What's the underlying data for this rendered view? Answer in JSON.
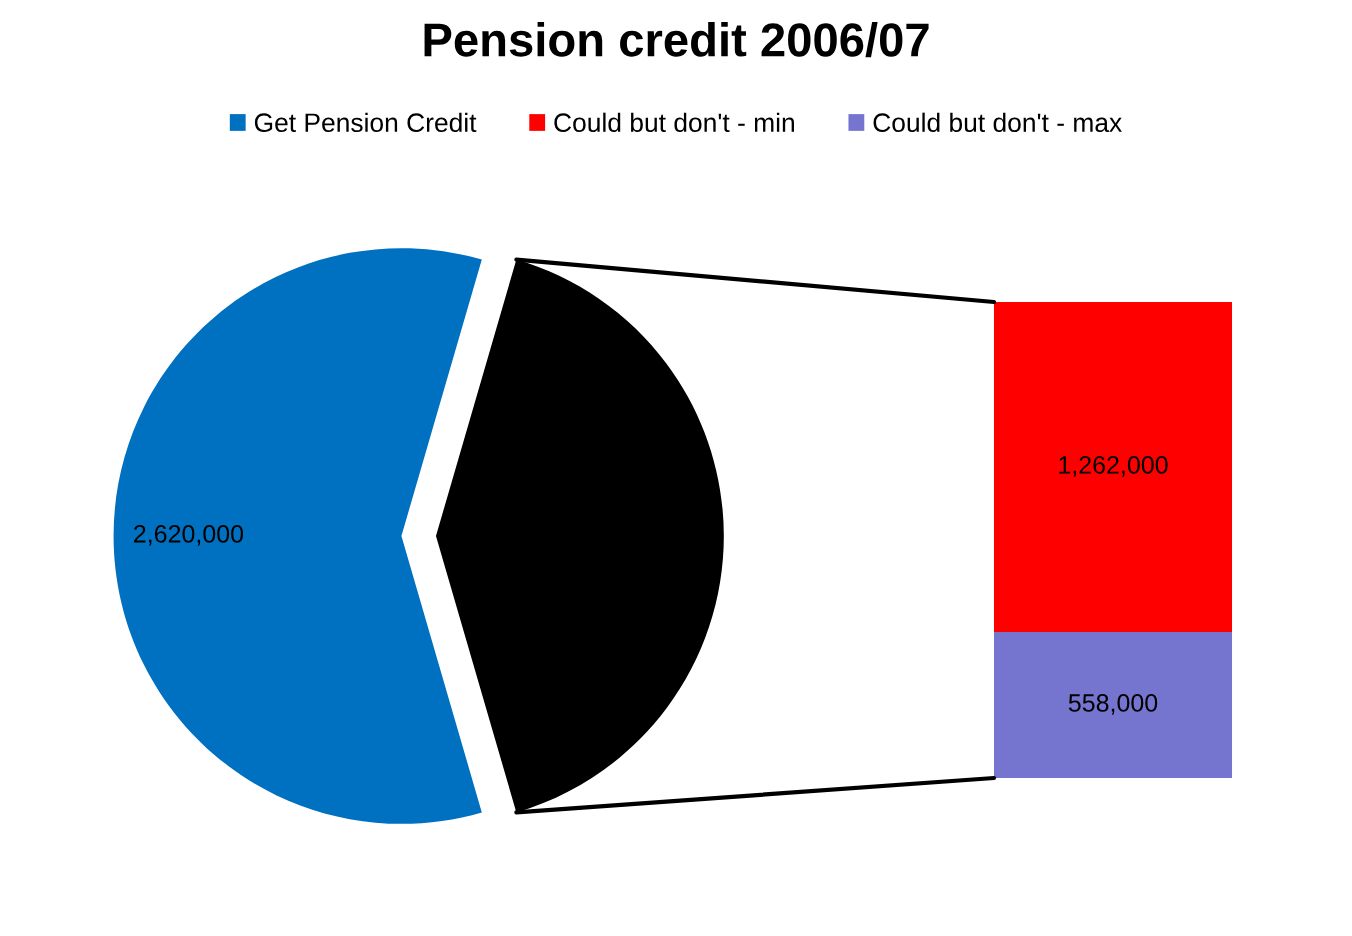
{
  "chart_data": [
    {
      "type": "pie",
      "title": "Pension credit 2006/07",
      "categories": [
        "Get Pension Credit",
        null
      ],
      "values": [
        2620000,
        1820000
      ],
      "colors": [
        "#0070c0",
        "#000000"
      ],
      "value_labels": [
        "2,620,000",
        null
      ],
      "legend": "top"
    },
    {
      "type": "bar",
      "stacked": true,
      "categories": [
        null
      ],
      "series": [
        {
          "name": "Could but don't - max",
          "color": "#7575d0",
          "values": [
            558000
          ],
          "value_labels": [
            "558,000"
          ]
        },
        {
          "name": "Could but don't - min",
          "color": "#ff0000",
          "values": [
            1262000
          ],
          "value_labels": [
            "1,262,000"
          ]
        }
      ],
      "legend": "top"
    }
  ]
}
